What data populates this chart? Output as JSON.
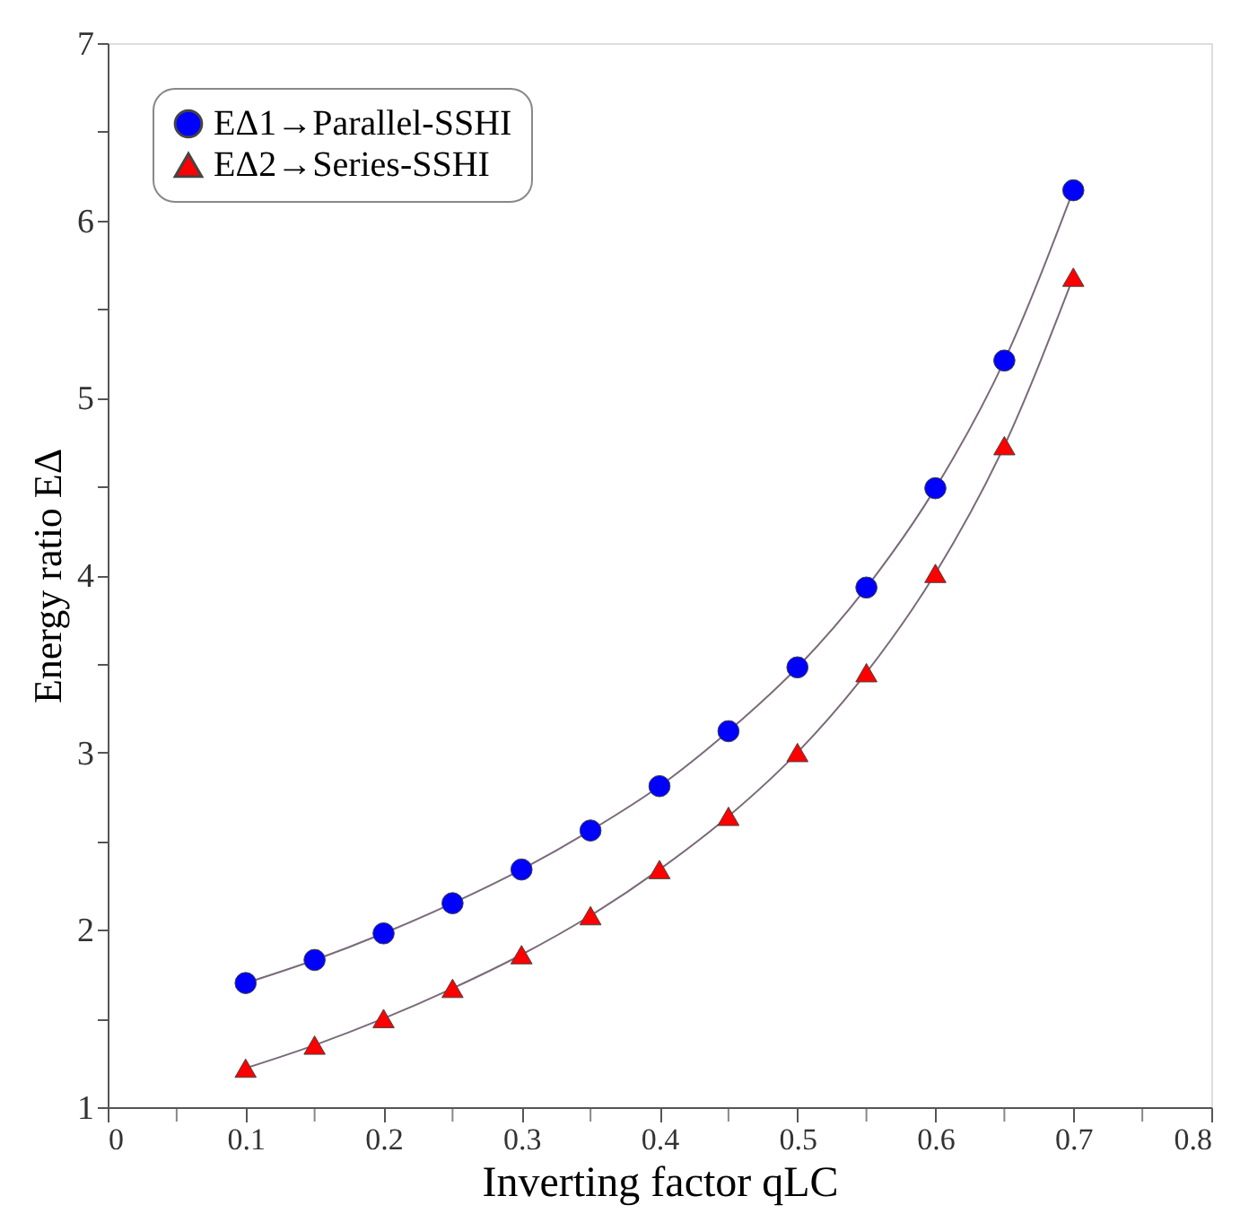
{
  "chart_data": {
    "type": "line",
    "xlabel": "Inverting factor qLC",
    "ylabel": "Energy ratio EΔ",
    "x": [
      0.1,
      0.15,
      0.2,
      0.25,
      0.3,
      0.35,
      0.4,
      0.45,
      0.5,
      0.55,
      0.6,
      0.65,
      0.7
    ],
    "series": [
      {
        "name": "EΔ1→Parallel-SSHI",
        "color": "#0000ff",
        "marker": "circle",
        "values": [
          1.7,
          1.83,
          1.98,
          2.15,
          2.34,
          2.56,
          2.81,
          3.12,
          3.48,
          3.93,
          4.49,
          5.21,
          6.17
        ]
      },
      {
        "name": "EΔ2→Series-SSHI",
        "color": "#ff0000",
        "marker": "triangle",
        "values": [
          1.22,
          1.35,
          1.5,
          1.67,
          1.86,
          2.08,
          2.34,
          2.64,
          3.0,
          3.45,
          4.01,
          4.73,
          5.68
        ]
      }
    ],
    "xlim": [
      0,
      0.8
    ],
    "ylim": [
      1,
      7
    ],
    "xticks": [
      0,
      {
        "value": 0.05,
        "label": null
      },
      0.1,
      {
        "value": 0.15,
        "label": null
      },
      0.2,
      {
        "value": 0.25,
        "label": null
      },
      0.3,
      {
        "value": 0.35,
        "label": null
      },
      0.4,
      {
        "value": 0.45,
        "label": null
      },
      0.5,
      {
        "value": 0.55,
        "label": null
      },
      0.6,
      {
        "value": 0.65,
        "label": null
      },
      0.7,
      {
        "value": 0.75,
        "label": null
      },
      0.8
    ],
    "yticks": [
      1,
      {
        "value": 1.5,
        "label": null
      },
      2,
      {
        "value": 2.5,
        "label": null
      },
      3,
      {
        "value": 3.5,
        "label": null
      },
      4,
      {
        "value": 4.5,
        "label": null
      },
      5,
      {
        "value": 5.5,
        "label": null
      },
      6,
      {
        "value": 6.5,
        "label": null
      },
      7
    ],
    "grid": false,
    "legend": "top left",
    "line_style": "solid"
  }
}
